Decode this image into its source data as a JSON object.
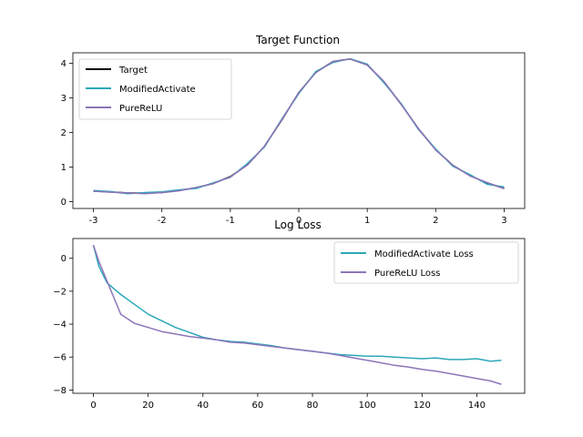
{
  "chart_data": [
    {
      "type": "line",
      "title": "Target Function",
      "xlabel": "",
      "ylabel": "",
      "xlim": [
        -3.3,
        3.3
      ],
      "ylim": [
        -0.2,
        4.3
      ],
      "xticks": [
        "-3",
        "-2",
        "-1",
        "0",
        "1",
        "2",
        "3"
      ],
      "yticks": [
        "0",
        "1",
        "2",
        "3",
        "4"
      ],
      "legend": "top-left",
      "grid": false,
      "x": [
        -3.0,
        -2.75,
        -2.5,
        -2.25,
        -2.0,
        -1.75,
        -1.5,
        -1.25,
        -1.0,
        -0.75,
        -0.5,
        -0.25,
        0.0,
        0.25,
        0.5,
        0.75,
        1.0,
        1.25,
        1.5,
        1.75,
        2.0,
        2.25,
        2.5,
        2.75,
        3.0
      ],
      "series": [
        {
          "name": "Target",
          "color": "#000000",
          "values": [
            0.3,
            0.28,
            0.25,
            0.24,
            0.26,
            0.32,
            0.4,
            0.52,
            0.72,
            1.06,
            1.6,
            2.35,
            3.15,
            3.74,
            4.05,
            4.12,
            3.95,
            3.45,
            2.8,
            2.1,
            1.5,
            1.05,
            0.75,
            0.54,
            0.38
          ]
        },
        {
          "name": "ModifiedActivate",
          "color": "#2ca8b8",
          "values": [
            0.32,
            0.29,
            0.23,
            0.26,
            0.28,
            0.34,
            0.38,
            0.54,
            0.7,
            1.1,
            1.58,
            2.38,
            3.12,
            3.76,
            4.02,
            4.13,
            3.97,
            3.42,
            2.82,
            2.08,
            1.52,
            1.02,
            0.78,
            0.5,
            0.42
          ]
        },
        {
          "name": "PureReLU",
          "color": "#8c75b8",
          "values": [
            0.3,
            0.27,
            0.25,
            0.23,
            0.26,
            0.31,
            0.41,
            0.52,
            0.71,
            1.06,
            1.6,
            2.36,
            3.15,
            3.73,
            4.05,
            4.12,
            3.95,
            3.46,
            2.8,
            2.1,
            1.49,
            1.05,
            0.74,
            0.55,
            0.37
          ]
        }
      ]
    },
    {
      "type": "line",
      "title": "Log Loss",
      "xlabel": "",
      "ylabel": "",
      "xlim": [
        -7.5,
        157.5
      ],
      "ylim": [
        -8.2,
        1.2
      ],
      "xticks": [
        "0",
        "20",
        "40",
        "60",
        "80",
        "100",
        "120",
        "140"
      ],
      "yticks": [
        "0",
        "−2",
        "−4",
        "−6",
        "−8"
      ],
      "legend": "top-right",
      "grid": false,
      "x": [
        0,
        2,
        5,
        10,
        15,
        20,
        25,
        30,
        35,
        40,
        45,
        50,
        55,
        60,
        65,
        70,
        75,
        80,
        85,
        90,
        95,
        100,
        105,
        110,
        115,
        120,
        125,
        130,
        135,
        140,
        145,
        149
      ],
      "series": [
        {
          "name": "ModifiedActivate Loss",
          "color": "#2ca8b8",
          "values": [
            0.8,
            -0.5,
            -1.5,
            -2.2,
            -2.8,
            -3.4,
            -3.8,
            -4.2,
            -4.5,
            -4.8,
            -4.95,
            -5.05,
            -5.1,
            -5.2,
            -5.3,
            -5.45,
            -5.55,
            -5.65,
            -5.75,
            -5.85,
            -5.9,
            -5.95,
            -5.95,
            -6.0,
            -6.05,
            -6.1,
            -6.05,
            -6.15,
            -6.15,
            -6.1,
            -6.25,
            -6.2
          ]
        },
        {
          "name": "PureReLU Loss",
          "color": "#8c75b8",
          "values": [
            0.8,
            -0.2,
            -1.4,
            -3.4,
            -3.95,
            -4.2,
            -4.45,
            -4.6,
            -4.75,
            -4.85,
            -4.95,
            -5.1,
            -5.15,
            -5.25,
            -5.35,
            -5.45,
            -5.55,
            -5.65,
            -5.75,
            -5.9,
            -6.05,
            -6.2,
            -6.35,
            -6.5,
            -6.6,
            -6.75,
            -6.85,
            -7.0,
            -7.15,
            -7.3,
            -7.45,
            -7.65
          ]
        }
      ]
    }
  ]
}
